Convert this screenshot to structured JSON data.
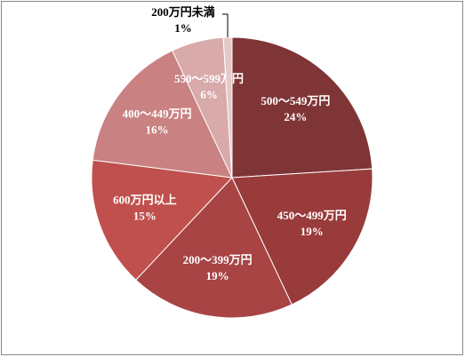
{
  "chart_data": {
    "type": "pie",
    "categories": [
      "500～549万円",
      "450～499万円",
      "200～399万円",
      "600万円以上",
      "400～449万円",
      "550～599万円",
      "200万円未満"
    ],
    "values": [
      24,
      19,
      19,
      15,
      16,
      6,
      1
    ],
    "value_labels": [
      "24%",
      "19%",
      "19%",
      "15%",
      "16%",
      "6%",
      "1%"
    ],
    "colors": [
      "#7f3436",
      "#993b3b",
      "#a94444",
      "#c0504d",
      "#c98181",
      "#d9aaaa",
      "#e5c9c9"
    ]
  }
}
